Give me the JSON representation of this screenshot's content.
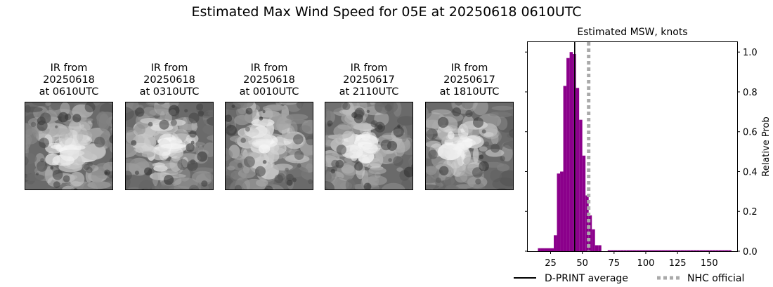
{
  "page": {
    "title": "Estimated Max Wind Speed for 05E at 20250618 0610UTC"
  },
  "ir_panels": [
    {
      "line1": "IR from",
      "line2": "20250618",
      "line3": "at 0610UTC"
    },
    {
      "line1": "IR from",
      "line2": "20250618",
      "line3": "at 0310UTC"
    },
    {
      "line1": "IR from",
      "line2": "20250618",
      "line3": "at 0010UTC"
    },
    {
      "line1": "IR from",
      "line2": "20250617",
      "line3": "at 2110UTC"
    },
    {
      "line1": "IR from",
      "line2": "20250617",
      "line3": "at 1810UTC"
    }
  ],
  "chart_data": {
    "type": "bar",
    "title": "Estimated MSW, knots",
    "xlabel": "",
    "ylabel": "Relative Prob",
    "xlim": [
      7,
      172
    ],
    "ylim": [
      0,
      1.05
    ],
    "xticks": [
      25,
      50,
      75,
      100,
      125,
      150
    ],
    "yticks": [
      0.0,
      0.2,
      0.4,
      0.6,
      0.8,
      1.0
    ],
    "ytick_labels": [
      "0.0",
      "0.2",
      "0.4",
      "0.6",
      "0.8",
      "1.0"
    ],
    "y_axis_side": "right",
    "grid": false,
    "bar_color": "#8b008b",
    "bin_width": 2.5,
    "bin_starts": [
      15,
      17.5,
      20,
      22.5,
      25,
      27.5,
      30,
      32.5,
      35,
      37.5,
      40,
      42.5,
      45,
      47.5,
      50,
      52.5,
      55,
      57.5,
      60,
      62.5,
      65,
      67.5,
      70,
      72.5,
      75,
      77.5,
      80,
      82.5,
      85,
      87.5,
      90,
      92.5,
      95,
      97.5,
      100,
      102.5,
      105,
      107.5,
      110,
      112.5,
      115,
      117.5,
      120,
      122.5,
      125,
      127.5,
      130,
      132.5,
      135,
      137.5,
      140,
      142.5,
      145,
      147.5,
      150,
      152.5,
      155,
      157.5,
      160,
      162.5,
      165
    ],
    "values": [
      0.015,
      0.015,
      0.015,
      0.015,
      0.015,
      0.08,
      0.39,
      0.4,
      0.83,
      0.97,
      1.0,
      0.99,
      0.82,
      0.66,
      0.48,
      0.28,
      0.18,
      0.11,
      0.03,
      0.03,
      0.0,
      0.0,
      0.005,
      0.005,
      0.005,
      0.005,
      0.005,
      0.005,
      0.005,
      0.005,
      0.005,
      0.005,
      0.005,
      0.005,
      0.005,
      0.005,
      0.005,
      0.005,
      0.005,
      0.005,
      0.005,
      0.005,
      0.005,
      0.005,
      0.005,
      0.005,
      0.005,
      0.005,
      0.005,
      0.005,
      0.005,
      0.005,
      0.005,
      0.005,
      0.005,
      0.005,
      0.005,
      0.005,
      0.005,
      0.005,
      0.005
    ],
    "dprint_average": 44,
    "nhc_official": 55,
    "legend": [
      {
        "label": "D-PRINT average",
        "color": "#000000",
        "style": "solid"
      },
      {
        "label": "NHC official",
        "color": "#aaaaaa",
        "style": "dotted"
      }
    ],
    "legend_placement": "bottom"
  }
}
